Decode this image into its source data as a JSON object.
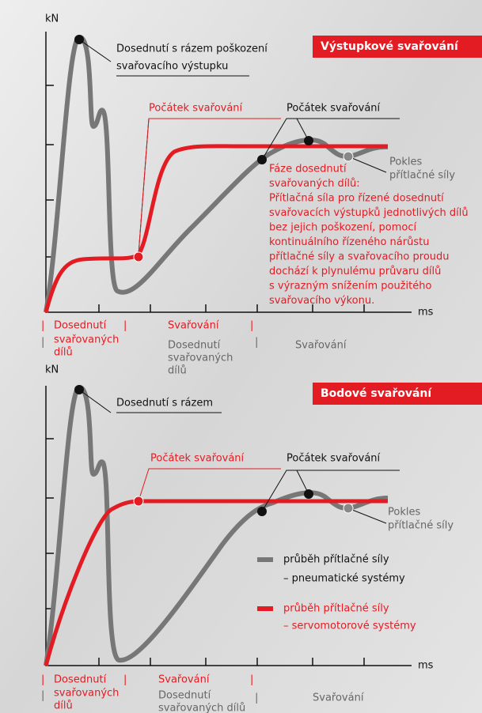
{
  "top": {
    "axis_y": "kN",
    "axis_x": "ms",
    "banner": "Výstupkové svařování",
    "impact_label": [
      "Dosednutí s rázem poškození",
      "svařovacího výstupku"
    ],
    "start_red": "Počátek svařování",
    "start_black": "Počátek svařování",
    "drop_label": [
      "Pokles",
      "přítlačné síly"
    ],
    "description": [
      "Fáze dosednutí",
      "svařovaných dílů:",
      "Přítlačná síla pro řízené dosednutí",
      "svařovacích výstupků jednotlivých dílů",
      "bez jejich poškození, pomocí",
      "kontinuálního řízeného nárůstu",
      "přítlačné síly a svařovacího proudu",
      "dochází k plynulému průvaru dílů",
      "s výrazným snížením použitého",
      "svařovacího výkonu."
    ],
    "phases_red": {
      "seat": [
        "Dosednutí",
        "svařovaných",
        "dílů"
      ],
      "weld": "Svařování"
    },
    "phases_gray": {
      "seat": [
        "Dosednutí",
        "svařovaných",
        "dílů"
      ],
      "weld": "Svařování"
    }
  },
  "bottom": {
    "axis_y": "kN",
    "axis_x": "ms",
    "banner": "Bodové svařování",
    "impact_label": "Dosednutí s rázem",
    "start_red": "Počátek svařování",
    "start_black": "Počátek svařování",
    "drop_label": [
      "Pokles",
      "přítlačné síly"
    ],
    "legend": {
      "gray": [
        "průběh přítlačné síly",
        "– pneumatické systémy"
      ],
      "red": [
        "průběh přítlačné síly",
        "– servomotorové systémy"
      ]
    },
    "phases_red": {
      "seat": [
        "Dosednutí",
        "svařovaných",
        "dílů"
      ],
      "weld": "Svařování"
    },
    "phases_gray": {
      "seat": [
        "Dosednutí",
        "svařovaných dílů"
      ],
      "weld": "Svařování"
    }
  }
}
